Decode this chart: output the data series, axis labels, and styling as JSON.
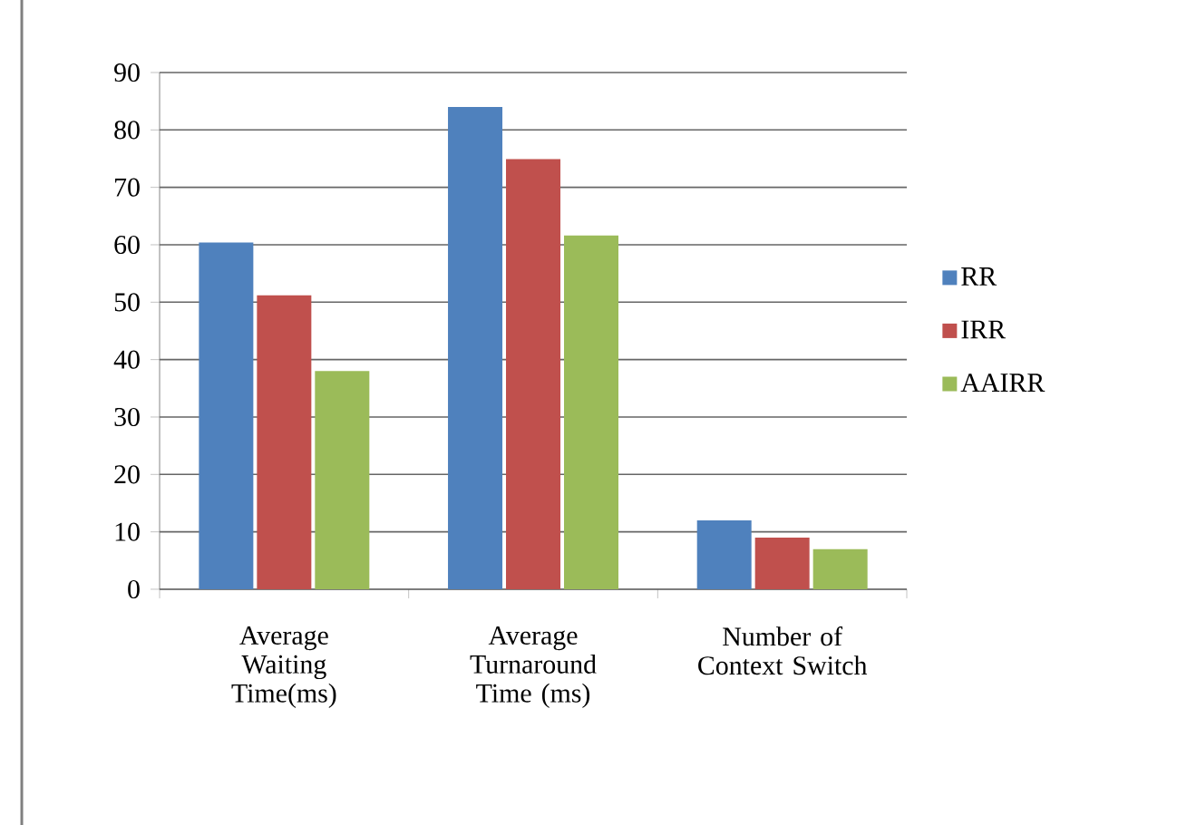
{
  "chart_data": {
    "type": "bar",
    "categories": [
      "Average Waiting Time(ms)",
      "Average Turnaround Time (ms)",
      "Number of Context Switch"
    ],
    "series": [
      {
        "name": "RR",
        "color": "#4f81bd",
        "values": [
          60.4,
          84.0,
          12
        ]
      },
      {
        "name": "IRR",
        "color": "#c0504d",
        "values": [
          51.2,
          74.9,
          9
        ]
      },
      {
        "name": "AAIRR",
        "color": "#9bbb59",
        "values": [
          38.0,
          61.6,
          7
        ]
      }
    ],
    "ylim": [
      0,
      90
    ],
    "yticks": [
      0,
      10,
      20,
      30,
      40,
      50,
      60,
      70,
      80,
      90
    ],
    "grid": "y",
    "legend": "right"
  }
}
